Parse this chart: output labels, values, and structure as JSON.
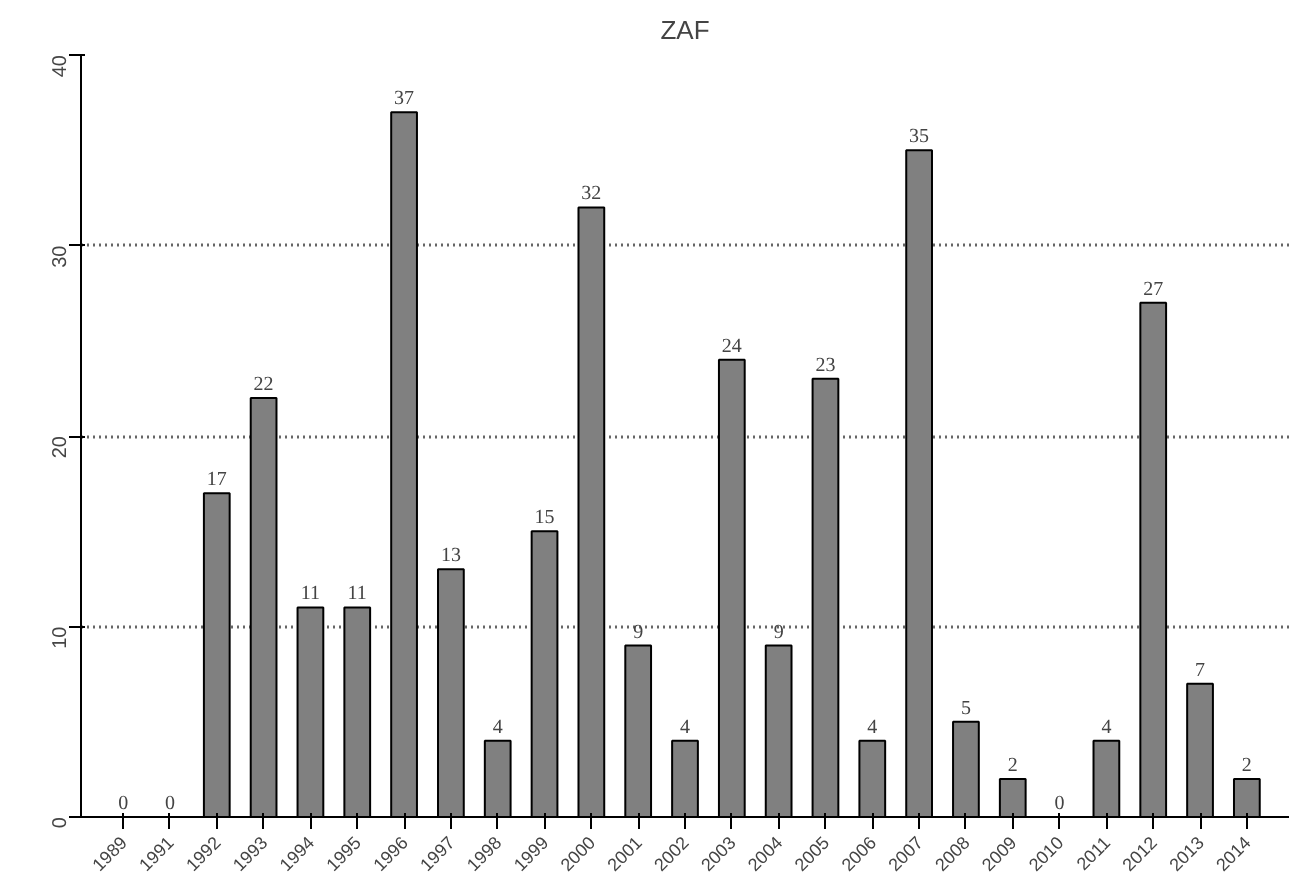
{
  "chart_data": {
    "type": "bar",
    "title": "ZAF",
    "categories": [
      "1989",
      "1991",
      "1992",
      "1993",
      "1994",
      "1995",
      "1996",
      "1997",
      "1998",
      "1999",
      "2000",
      "2001",
      "2002",
      "2003",
      "2004",
      "2005",
      "2006",
      "2007",
      "2008",
      "2009",
      "2010",
      "2011",
      "2012",
      "2013",
      "2014"
    ],
    "values": [
      0,
      0,
      17,
      22,
      11,
      11,
      37,
      13,
      4,
      15,
      32,
      9,
      4,
      24,
      9,
      23,
      4,
      35,
      5,
      2,
      0,
      4,
      27,
      7,
      2
    ],
    "color": "#808080",
    "ylim": [
      0,
      40
    ],
    "yticks": [
      0,
      10,
      20,
      30,
      40
    ],
    "grid": "y",
    "data_labels": true
  }
}
